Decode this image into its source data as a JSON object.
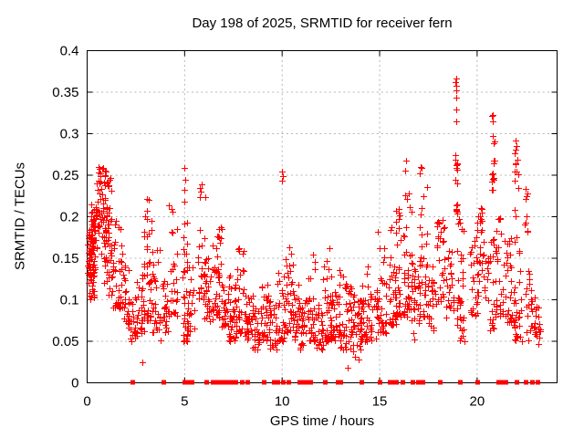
{
  "window": {
    "background": "#ffffff"
  },
  "chart_data": {
    "type": "scatter",
    "title": "Day 198 of 2025, SRMTID for receiver fern",
    "xlabel": "GPS time / hours",
    "ylabel": "SRMTID / TECUs",
    "xlim": [
      0,
      24.1
    ],
    "ylim": [
      0,
      0.4
    ],
    "xticks": [
      0,
      5,
      10,
      15,
      20
    ],
    "xtick_labels": [
      "0",
      "5",
      "10",
      "15",
      "20"
    ],
    "yticks": [
      0,
      0.05,
      0.1,
      0.15,
      0.2,
      0.25,
      0.3,
      0.35,
      0.4
    ],
    "ytick_labels": [
      "0",
      "0.05",
      "0.1",
      "0.15",
      "0.2",
      "0.25",
      "0.3",
      "0.35",
      "0.4"
    ],
    "grid": true,
    "legend": "none",
    "marker_color": "#ff0000",
    "grid_color": "#b4b4b4",
    "axis_color": "#000000",
    "seed": 1337,
    "cluster_format": "[x_min_hours, x_max_hours, y_min_TECU, y_max_TECU, n_points, dist 0=bottom-weighted 1=uniform]",
    "series": [
      {
        "name": "SRMTID",
        "marker": "plus",
        "clusters": [
          [
            0.02,
            0.45,
            0.13,
            0.195,
            70,
            1
          ],
          [
            0.05,
            0.4,
            0.1,
            0.135,
            18,
            1
          ],
          [
            0.1,
            0.5,
            0.195,
            0.225,
            14,
            1
          ],
          [
            0.45,
            0.85,
            0.15,
            0.26,
            40,
            1
          ],
          [
            0.8,
            1.25,
            0.17,
            0.255,
            45,
            1
          ],
          [
            0.85,
            1.3,
            0.105,
            0.17,
            30,
            1
          ],
          [
            1.3,
            1.75,
            0.09,
            0.2,
            38,
            0
          ],
          [
            1.75,
            2.15,
            0.07,
            0.16,
            28,
            0
          ],
          [
            2.1,
            2.55,
            0.05,
            0.105,
            22,
            1
          ],
          [
            2.45,
            2.95,
            0.06,
            0.15,
            28,
            0
          ],
          [
            2.8,
            3.3,
            0.075,
            0.235,
            40,
            0
          ],
          [
            3.3,
            3.75,
            0.06,
            0.16,
            28,
            0
          ],
          [
            3.75,
            4.2,
            0.05,
            0.125,
            24,
            1
          ],
          [
            4.2,
            4.65,
            0.08,
            0.22,
            26,
            0
          ],
          [
            4.9,
            5.15,
            0.05,
            0.205,
            30,
            0
          ],
          [
            5.1,
            5.55,
            0.06,
            0.14,
            24,
            1
          ],
          [
            5.7,
            6.05,
            0.1,
            0.24,
            28,
            0
          ],
          [
            6.0,
            6.45,
            0.07,
            0.15,
            24,
            1
          ],
          [
            6.4,
            6.95,
            0.075,
            0.19,
            44,
            0
          ],
          [
            6.9,
            7.35,
            0.05,
            0.13,
            28,
            1
          ],
          [
            7.3,
            7.7,
            0.05,
            0.12,
            26,
            1
          ],
          [
            7.6,
            8.1,
            0.06,
            0.165,
            32,
            0
          ],
          [
            8.1,
            8.55,
            0.05,
            0.11,
            28,
            1
          ],
          [
            8.5,
            8.95,
            0.04,
            0.095,
            24,
            1
          ],
          [
            8.9,
            9.35,
            0.05,
            0.12,
            28,
            1
          ],
          [
            9.3,
            9.75,
            0.04,
            0.1,
            26,
            1
          ],
          [
            9.7,
            10.15,
            0.05,
            0.135,
            28,
            0
          ],
          [
            10.15,
            10.55,
            0.06,
            0.165,
            32,
            0
          ],
          [
            10.5,
            10.95,
            0.05,
            0.12,
            24,
            1
          ],
          [
            10.9,
            11.35,
            0.04,
            0.11,
            26,
            1
          ],
          [
            11.3,
            11.75,
            0.05,
            0.155,
            30,
            0
          ],
          [
            11.7,
            12.1,
            0.04,
            0.1,
            24,
            1
          ],
          [
            12.1,
            12.55,
            0.05,
            0.17,
            36,
            0
          ],
          [
            12.5,
            12.95,
            0.045,
            0.11,
            28,
            1
          ],
          [
            12.9,
            13.35,
            0.04,
            0.14,
            30,
            0
          ],
          [
            13.35,
            13.8,
            0.03,
            0.12,
            30,
            1
          ],
          [
            13.8,
            14.15,
            0.04,
            0.1,
            24,
            1
          ],
          [
            14.0,
            14.45,
            0.05,
            0.145,
            30,
            0
          ],
          [
            14.5,
            14.95,
            0.05,
            0.12,
            26,
            1
          ],
          [
            14.9,
            15.35,
            0.06,
            0.185,
            30,
            0
          ],
          [
            15.45,
            15.85,
            0.07,
            0.19,
            28,
            0
          ],
          [
            15.8,
            16.15,
            0.08,
            0.235,
            30,
            0
          ],
          [
            16.2,
            16.65,
            0.08,
            0.25,
            40,
            0
          ],
          [
            16.6,
            17.05,
            0.05,
            0.15,
            26,
            1
          ],
          [
            17.05,
            17.45,
            0.08,
            0.27,
            34,
            0
          ],
          [
            17.45,
            17.85,
            0.06,
            0.14,
            22,
            1
          ],
          [
            17.9,
            18.35,
            0.09,
            0.2,
            30,
            1
          ],
          [
            18.4,
            18.8,
            0.07,
            0.16,
            24,
            1
          ],
          [
            18.88,
            19.0,
            0.2,
            0.31,
            16,
            1
          ],
          [
            18.95,
            19.35,
            0.05,
            0.2,
            34,
            0
          ],
          [
            19.6,
            20.05,
            0.08,
            0.18,
            26,
            1
          ],
          [
            20.0,
            20.45,
            0.1,
            0.215,
            30,
            1
          ],
          [
            20.5,
            20.9,
            0.06,
            0.175,
            24,
            1
          ],
          [
            20.7,
            20.92,
            0.23,
            0.322,
            16,
            1
          ],
          [
            20.9,
            21.35,
            0.08,
            0.2,
            30,
            0
          ],
          [
            21.4,
            21.8,
            0.07,
            0.175,
            26,
            1
          ],
          [
            21.9,
            22.1,
            0.2,
            0.292,
            12,
            1
          ],
          [
            21.85,
            22.35,
            0.05,
            0.185,
            32,
            0
          ],
          [
            22.4,
            22.6,
            0.17,
            0.235,
            9,
            1
          ],
          [
            22.45,
            23.0,
            0.05,
            0.135,
            30,
            1
          ],
          [
            23.0,
            23.25,
            0.04,
            0.105,
            16,
            1
          ]
        ],
        "points": [
          [
            4.98,
            0.259
          ],
          [
            5.01,
            0.245
          ],
          [
            5.0,
            0.232
          ],
          [
            4.99,
            0.218
          ],
          [
            9.98,
            0.254
          ],
          [
            10.02,
            0.249
          ],
          [
            10.0,
            0.243
          ],
          [
            16.35,
            0.268
          ],
          [
            16.3,
            0.256
          ],
          [
            18.92,
            0.367
          ],
          [
            18.9,
            0.362
          ],
          [
            18.94,
            0.358
          ],
          [
            18.91,
            0.352
          ],
          [
            18.93,
            0.343
          ],
          [
            18.92,
            0.329
          ],
          [
            18.95,
            0.315
          ],
          [
            20.8,
            0.322
          ],
          [
            20.78,
            0.315
          ],
          [
            21.98,
            0.292
          ],
          [
            22.02,
            0.285
          ],
          [
            2.82,
            0.025
          ],
          [
            13.35,
            0.018
          ],
          [
            13.9,
            0.028
          ]
        ]
      },
      {
        "name": "zero-line markers",
        "marker": "filled-square",
        "y": 0,
        "x": [
          2.3,
          3.9,
          5.0,
          5.1,
          5.2,
          5.35,
          6.1,
          6.45,
          6.65,
          6.9,
          7.1,
          7.25,
          7.45,
          7.6,
          7.95,
          8.2,
          9.05,
          9.55,
          9.75,
          10.05,
          10.3,
          10.9,
          11.05,
          11.2,
          11.45,
          12.2,
          12.85,
          13.0,
          14.05,
          15.0,
          15.5,
          15.6,
          15.7,
          15.85,
          16.15,
          16.7,
          16.95,
          17.2,
          18.1,
          19.1,
          20.0,
          21.1,
          21.2,
          21.45,
          22.0,
          22.5,
          22.8,
          23.1
        ]
      }
    ]
  }
}
